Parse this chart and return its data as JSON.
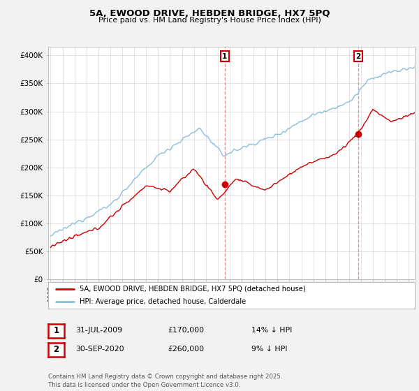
{
  "title_line1": "5A, EWOOD DRIVE, HEBDEN BRIDGE, HX7 5PQ",
  "title_line2": "Price paid vs. HM Land Registry's House Price Index (HPI)",
  "ylabel_ticks": [
    "£0",
    "£50K",
    "£100K",
    "£150K",
    "£200K",
    "£250K",
    "£300K",
    "£350K",
    "£400K"
  ],
  "ytick_vals": [
    0,
    50000,
    100000,
    150000,
    200000,
    250000,
    300000,
    350000,
    400000
  ],
  "ylim": [
    0,
    415000
  ],
  "xlim_start": 1994.8,
  "xlim_end": 2025.5,
  "sale1_date": 2009.58,
  "sale1_price": 170000,
  "sale1_label": "1",
  "sale2_date": 2020.75,
  "sale2_price": 260000,
  "sale2_label": "2",
  "hpi_color": "#8bbfda",
  "price_color": "#cc0000",
  "dashed_color": "#e08080",
  "legend_label1": "5A, EWOOD DRIVE, HEBDEN BRIDGE, HX7 5PQ (detached house)",
  "legend_label2": "HPI: Average price, detached house, Calderdale",
  "table_row1": [
    "1",
    "31-JUL-2009",
    "£170,000",
    "14% ↓ HPI"
  ],
  "table_row2": [
    "2",
    "30-SEP-2020",
    "£260,000",
    "9% ↓ HPI"
  ],
  "footnote": "Contains HM Land Registry data © Crown copyright and database right 2025.\nThis data is licensed under the Open Government Licence v3.0.",
  "background_color": "#f2f2f2",
  "plot_background": "#ffffff"
}
